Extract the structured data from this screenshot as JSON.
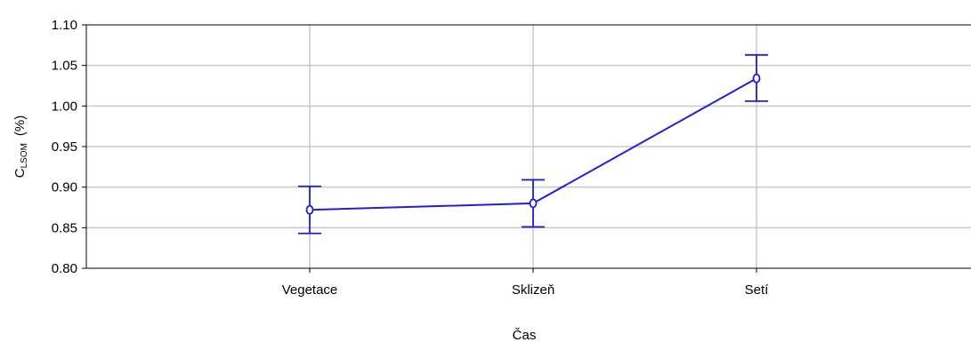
{
  "chart_data": {
    "type": "line",
    "categories": [
      "Vegetace",
      "Sklizeň",
      "Setí"
    ],
    "series": [
      {
        "values": [
          0.872,
          0.88,
          1.034
        ],
        "error_low": [
          0.843,
          0.851,
          1.006
        ],
        "error_high": [
          0.901,
          0.909,
          1.063
        ]
      }
    ],
    "xlabel": "Čas",
    "ylabel": {
      "main": "C",
      "subscript": "LSOM",
      "unit": "(%)"
    },
    "ylim": [
      0.8,
      1.1
    ],
    "yticks": [
      "0.80",
      "0.85",
      "0.90",
      "0.95",
      "1.00",
      "1.05",
      "1.10"
    ],
    "grid": true,
    "colors": {
      "series": "#1f1fd6",
      "grid": "#c8c8c8",
      "axis": "#000000"
    }
  }
}
